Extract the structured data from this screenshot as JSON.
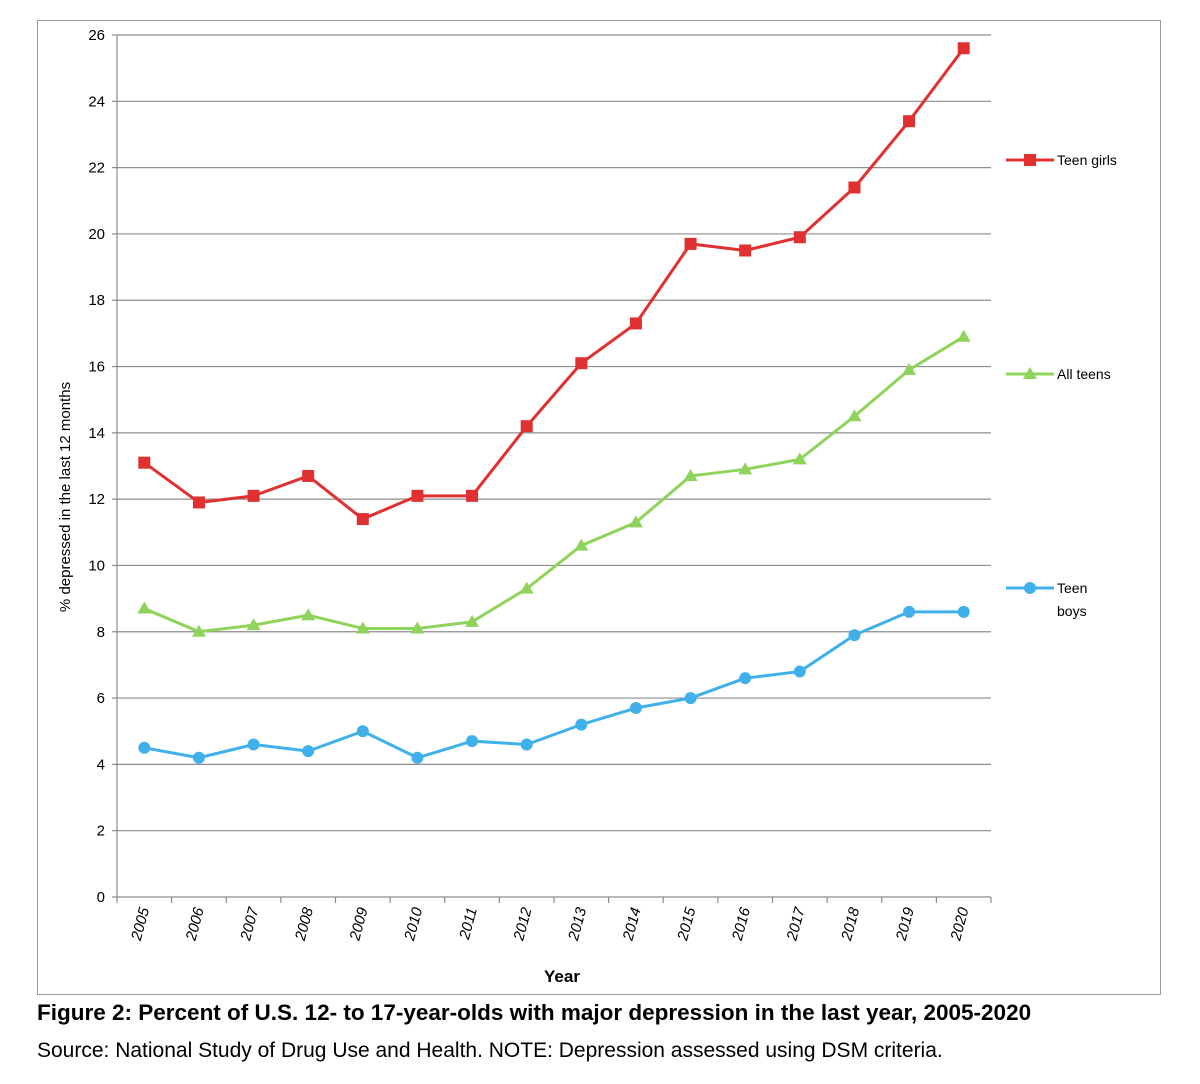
{
  "chart_data": {
    "type": "line",
    "xlabel": "Year",
    "ylabel": "% depressed in the last 12 months",
    "ylim": [
      0,
      26
    ],
    "yticks": [
      "0",
      "2",
      "4",
      "6",
      "8",
      "10",
      "12",
      "14",
      "16",
      "18",
      "20",
      "22",
      "24",
      "26"
    ],
    "categories": [
      "2005",
      "2006",
      "2007",
      "2008",
      "2009",
      "2010",
      "2011",
      "2012",
      "2013",
      "2014",
      "2015",
      "2016",
      "2017",
      "2018",
      "2019",
      "2020"
    ],
    "grid": "horizontal",
    "legend_position": "right",
    "series": [
      {
        "name": "Teen girls",
        "color": "#e03030",
        "marker": "square",
        "values": [
          13.1,
          11.9,
          12.1,
          12.7,
          11.4,
          12.1,
          12.1,
          14.2,
          16.1,
          17.3,
          19.7,
          19.5,
          19.9,
          21.4,
          23.4,
          25.6
        ]
      },
      {
        "name": "All teens",
        "color": "#8ed35a",
        "marker": "triangle",
        "values": [
          8.7,
          8.0,
          8.2,
          8.5,
          8.1,
          8.1,
          8.3,
          9.3,
          10.6,
          11.3,
          12.7,
          12.9,
          13.2,
          14.5,
          15.9,
          16.9
        ]
      },
      {
        "name": "Teen boys",
        "color": "#3fb0ea",
        "marker": "circle",
        "values": [
          4.5,
          4.2,
          4.6,
          4.4,
          5.0,
          4.2,
          4.7,
          4.6,
          5.2,
          5.7,
          6.0,
          6.6,
          6.8,
          7.9,
          8.6,
          8.6
        ]
      }
    ]
  },
  "caption": {
    "title": "Figure 2: Percent of U.S. 12- to 17-year-olds with major depression in the last year, 2005-2020",
    "source": "Source: National Study of Drug Use and Health. NOTE: Depression assessed using DSM criteria."
  }
}
